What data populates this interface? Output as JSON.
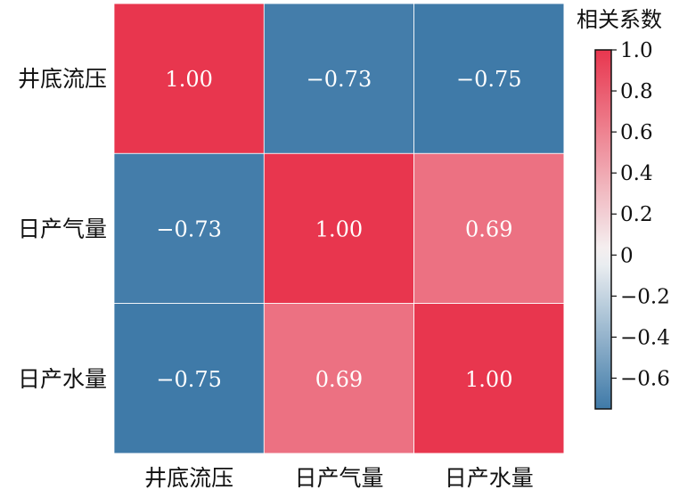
{
  "chart_data": {
    "type": "heatmap",
    "title": "",
    "row_labels": [
      "井底流压",
      "日产气量",
      "日产水量"
    ],
    "col_labels": [
      "井底流压",
      "日产气量",
      "日产水量"
    ],
    "values": [
      [
        1.0,
        -0.73,
        -0.75
      ],
      [
        -0.73,
        1.0,
        0.69
      ],
      [
        -0.75,
        0.69,
        1.0
      ]
    ],
    "cell_labels": [
      [
        "1.00",
        "−0.73",
        "−0.75"
      ],
      [
        "−0.73",
        "1.00",
        "0.69"
      ],
      [
        "−0.75",
        "0.69",
        "1.00"
      ]
    ],
    "colorbar": {
      "title": "相关系数",
      "range": [
        -0.75,
        1.0
      ],
      "ticks": [
        1.0,
        0.8,
        0.6,
        0.4,
        0.2,
        0,
        -0.2,
        -0.4,
        -0.6
      ],
      "tick_labels": [
        "1.0",
        "0.8",
        "0.6",
        "0.4",
        "0.2",
        "0",
        "−0.2",
        "−0.4",
        "−0.6"
      ],
      "position": "right"
    },
    "colors": {
      "negative": "#3f7aa8",
      "zero": "#f5f5f5",
      "positive": "#e8364e"
    }
  }
}
